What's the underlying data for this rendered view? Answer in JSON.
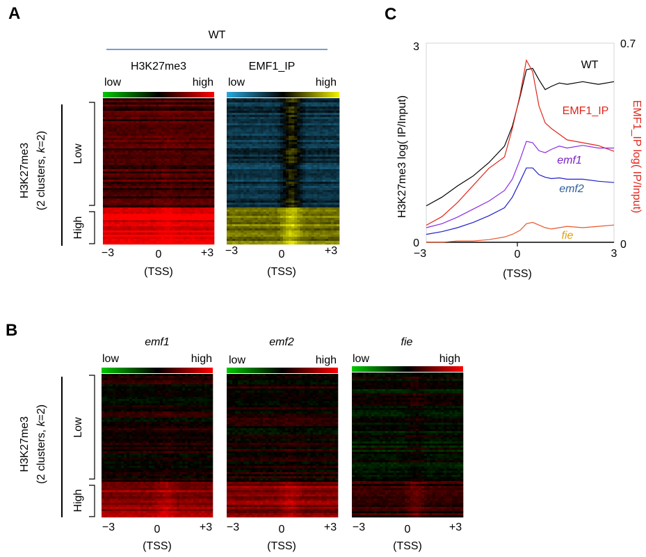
{
  "panels": {
    "A": {
      "letter": "A",
      "group_title": "WT",
      "cluster_label": "H3K27me3",
      "cluster_sub": "(2 clusters, k=2)",
      "cluster_sub_parts": [
        "(2 clusters, ",
        "k",
        "=2)"
      ],
      "clusters": [
        "Low",
        "High"
      ],
      "heatmaps": [
        {
          "title": "H3K27me3",
          "low": "low",
          "high": "high",
          "scale": [
            "#00c800",
            "#000000",
            "#ff0000"
          ],
          "ticks": [
            "−3",
            "0",
            "+3"
          ],
          "xlabel": "(TSS)"
        },
        {
          "title": "EMF1_IP",
          "low": "low",
          "high": "high",
          "scale": [
            "#29a8e0",
            "#000000",
            "#f2f200"
          ],
          "ticks": [
            "−3",
            "0",
            "+3"
          ],
          "xlabel": "(TSS)"
        }
      ]
    },
    "B": {
      "letter": "B",
      "cluster_label": "H3K27me3",
      "cluster_sub_parts": [
        "(2 clusters, ",
        "k",
        "=2)"
      ],
      "clusters": [
        "Low",
        "High"
      ],
      "heatmaps": [
        {
          "title": "emf1",
          "low": "low",
          "high": "high",
          "scale": [
            "#00c800",
            "#000000",
            "#ff0000"
          ],
          "ticks": [
            "−3",
            "0",
            "+3"
          ],
          "xlabel": "(TSS)"
        },
        {
          "title": "emf2",
          "low": "low",
          "high": "high",
          "scale": [
            "#00c800",
            "#000000",
            "#ff0000"
          ],
          "ticks": [
            "−3",
            "0",
            "+3"
          ],
          "xlabel": "(TSS)"
        },
        {
          "title": "fie",
          "low": "low",
          "high": "high",
          "scale": [
            "#00c800",
            "#000000",
            "#ff0000"
          ],
          "ticks": [
            "−3",
            "0",
            "+3"
          ],
          "xlabel": "(TSS)"
        }
      ]
    },
    "C": {
      "letter": "C",
      "ylabel_left": "H3K27me3  log( IP/Input)",
      "ylabel_right": "EMF1_IP  log( IP/Input)",
      "xlabel": "(TSS)"
    }
  },
  "chart_data": [
    {
      "type": "heatmap",
      "panel": "A",
      "x": [
        -3,
        0,
        3
      ],
      "xticks": [
        "−3",
        "0",
        "+3"
      ],
      "xlabel": "(TSS)",
      "row_clusters": [
        "Low",
        "High"
      ],
      "series": [
        {
          "name": "H3K27me3",
          "cluster_levels": {
            "Low": 0.25,
            "High": 0.9
          },
          "tss_peak": {
            "Low": 0.3,
            "High": 1.0
          }
        },
        {
          "name": "EMF1_IP",
          "cluster_levels": {
            "Low": -0.3,
            "High": 0.45
          },
          "tss_peak": {
            "Low": 0.2,
            "High": 0.8
          }
        }
      ]
    },
    {
      "type": "heatmap",
      "panel": "B",
      "x": [
        -3,
        0,
        3
      ],
      "xticks": [
        "−3",
        "0",
        "+3"
      ],
      "xlabel": "(TSS)",
      "row_clusters": [
        "Low",
        "High"
      ],
      "series": [
        {
          "name": "emf1",
          "cluster_levels": {
            "Low": 0.05,
            "High": 0.55
          },
          "tss_peak": {
            "Low": 0.1,
            "High": 0.75
          }
        },
        {
          "name": "emf2",
          "cluster_levels": {
            "Low": 0.05,
            "High": 0.5
          },
          "tss_peak": {
            "Low": 0.1,
            "High": 0.7
          }
        },
        {
          "name": "fie",
          "cluster_levels": {
            "Low": -0.05,
            "High": 0.15
          },
          "tss_peak": {
            "Low": 0.05,
            "High": 0.35
          }
        }
      ]
    },
    {
      "type": "line",
      "panel": "C",
      "xlim": [
        -3,
        3
      ],
      "xticks": [
        "−3",
        "0",
        "3"
      ],
      "xlabel": "(TSS)",
      "ylim_left": [
        0,
        3
      ],
      "yticks_left": [
        "0",
        "3"
      ],
      "ylabel_left": "H3K27me3  log( IP/Input)",
      "ylim_right": [
        0,
        0.7
      ],
      "yticks_right": [
        "0",
        "0.7"
      ],
      "ylabel_right": "EMF1_IP  log( IP/Input)",
      "grid": false,
      "x": [
        -3,
        -2.5,
        -2,
        -1.5,
        -1,
        -0.5,
        -0.25,
        0,
        0.2,
        0.4,
        0.6,
        0.8,
        1,
        1.25,
        1.5,
        2,
        2.5,
        3
      ],
      "series": [
        {
          "name": "WT",
          "axis": "left",
          "color": "#000000",
          "values": [
            0.55,
            0.68,
            0.85,
            1.0,
            1.2,
            1.45,
            1.75,
            2.2,
            2.6,
            2.62,
            2.45,
            2.3,
            2.35,
            2.4,
            2.38,
            2.42,
            2.38,
            2.42
          ]
        },
        {
          "name": "EMF1_IP",
          "axis": "right",
          "color": "#e0251b",
          "values": [
            0.06,
            0.09,
            0.14,
            0.2,
            0.26,
            0.3,
            0.4,
            0.52,
            0.64,
            0.6,
            0.48,
            0.42,
            0.4,
            0.38,
            0.36,
            0.35,
            0.34,
            0.32
          ]
        },
        {
          "name": "emf1",
          "axis": "left",
          "color": "#8a2be2",
          "values": [
            0.22,
            0.28,
            0.38,
            0.5,
            0.62,
            0.78,
            0.95,
            1.25,
            1.52,
            1.5,
            1.38,
            1.35,
            1.4,
            1.45,
            1.42,
            1.46,
            1.42,
            1.42
          ]
        },
        {
          "name": "emf2",
          "axis": "left",
          "color": "#1e1ecc",
          "values": [
            0.12,
            0.16,
            0.22,
            0.3,
            0.4,
            0.52,
            0.68,
            0.92,
            1.12,
            1.12,
            1.02,
            0.98,
            0.96,
            0.97,
            0.95,
            0.95,
            0.92,
            0.9
          ]
        },
        {
          "name": "fie",
          "axis": "left",
          "color": "#e8562a",
          "values": [
            -0.02,
            0.0,
            0.02,
            0.02,
            0.04,
            0.08,
            0.12,
            0.18,
            0.28,
            0.3,
            0.26,
            0.22,
            0.2,
            0.22,
            0.24,
            0.22,
            0.24,
            0.26
          ]
        }
      ],
      "labels": [
        {
          "series": "WT",
          "text": "WT",
          "color": "#000000",
          "italic": false
        },
        {
          "series": "EMF1_IP",
          "text": "EMF1_IP",
          "color": "#e0251b",
          "italic": false
        },
        {
          "series": "emf1",
          "text": "emf1",
          "color": "#7b22c8",
          "italic": true
        },
        {
          "series": "emf2",
          "text": "emf2",
          "color": "#2f5f9a",
          "italic": true
        },
        {
          "series": "fie",
          "text": "fie",
          "color": "#e0a010",
          "italic": true
        }
      ]
    }
  ]
}
